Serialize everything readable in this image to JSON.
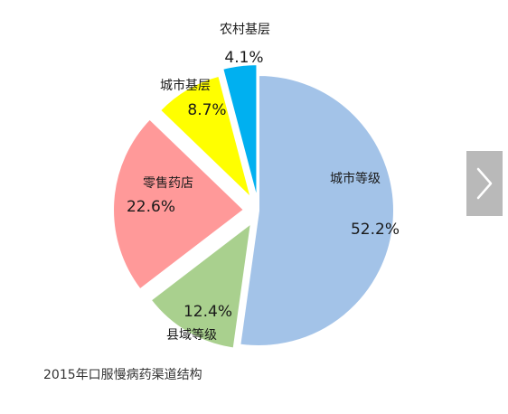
{
  "chart_data": {
    "type": "pie",
    "title": "",
    "caption": "2015年口服慢病药渠道结构",
    "slices": [
      {
        "label": "城市等级",
        "value": 52.2,
        "display": "52.2%",
        "color": "#a3c3e8"
      },
      {
        "label": "县域等级",
        "value": 12.4,
        "display": "12.4%",
        "color": "#a9d08e"
      },
      {
        "label": "零售药店",
        "value": 22.6,
        "display": "22.6%",
        "color": "#ff9999"
      },
      {
        "label": "城市基层",
        "value": 8.7,
        "display": "8.7%",
        "color": "#ffff00"
      },
      {
        "label": "农村基层",
        "value": 4.1,
        "display": "4.1%",
        "color": "#00b0f0"
      }
    ]
  },
  "nav": {
    "next_icon": "chevron-right-icon"
  }
}
